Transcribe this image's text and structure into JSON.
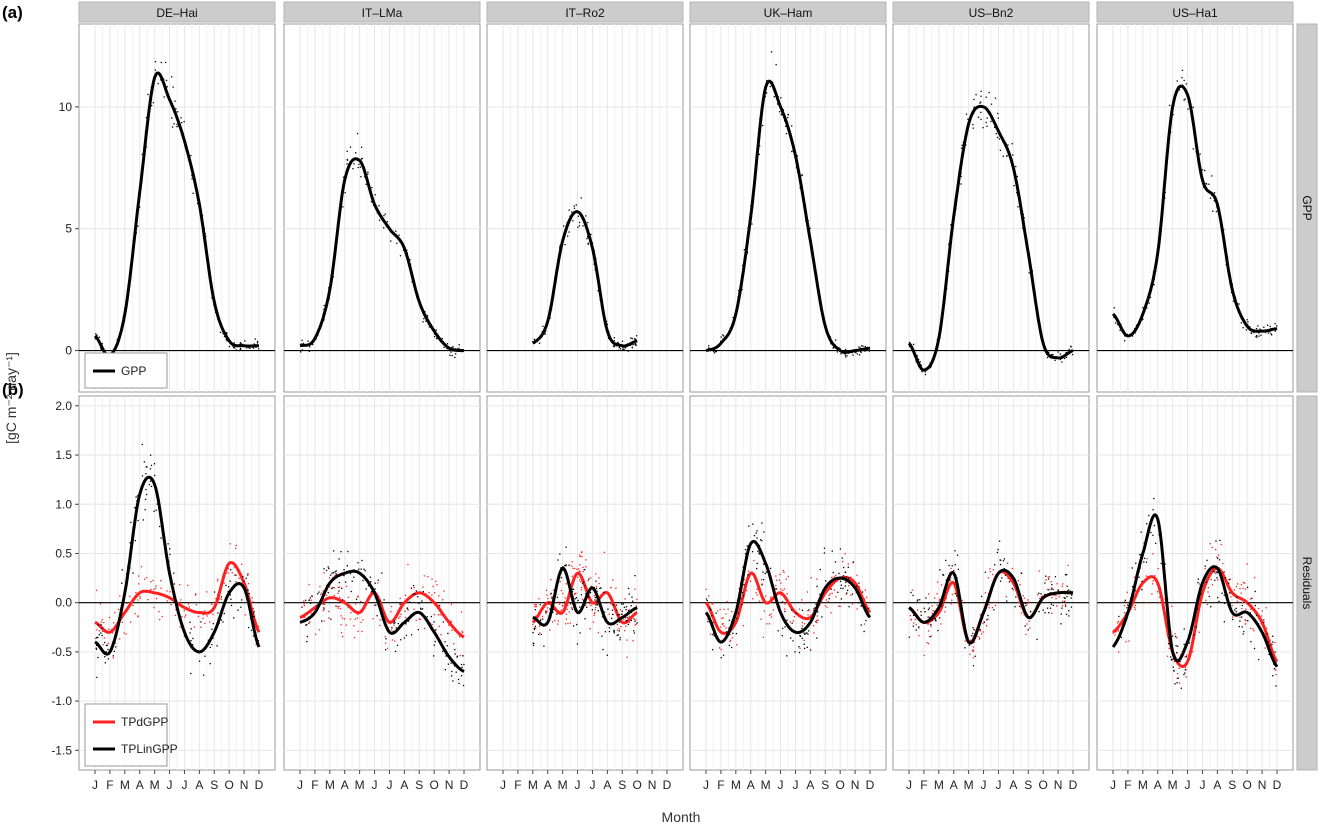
{
  "panel_labels": {
    "a": "(a)",
    "b": "(b)"
  },
  "y_axis_label": "[gC m⁻² day⁻¹]",
  "x_axis_label": "Month",
  "row_strips": [
    "GPP",
    "Residuals"
  ],
  "month_ticks": [
    "J",
    "F",
    "M",
    "A",
    "M",
    "J",
    "J",
    "A",
    "S",
    "O",
    "N",
    "D"
  ],
  "colors": {
    "gpp": "#000000",
    "tpd": "#ff2020",
    "tplin": "#000000",
    "strip": "#cccccc",
    "grid": "#e6e6e6",
    "zero": "#000000"
  },
  "chart_data": [
    {
      "type": "line",
      "row": "GPP",
      "x": [
        1,
        2,
        3,
        4,
        5,
        6,
        7,
        8,
        9,
        10,
        11,
        12
      ],
      "ylim": [
        -1.7,
        13.4
      ],
      "yticks": [
        0,
        5,
        10
      ],
      "legend": {
        "placement": "bottom-left",
        "entries": [
          "GPP"
        ]
      },
      "series": [
        {
          "name": "GPP",
          "site": "DE–Hai",
          "values": [
            0.6,
            -0.2,
            1.5,
            6.5,
            11.2,
            10.3,
            8.6,
            6.0,
            2.0,
            0.4,
            0.2,
            0.2
          ]
        },
        {
          "name": "GPP",
          "site": "IT–LMa",
          "values": [
            0.2,
            0.5,
            2.5,
            7.0,
            7.8,
            6.0,
            5.0,
            4.2,
            2.0,
            0.8,
            0.1,
            0.0
          ]
        },
        {
          "name": "GPP",
          "site": "IT–Ro2",
          "values": [
            null,
            null,
            0.3,
            1.2,
            4.5,
            5.7,
            4.2,
            0.8,
            0.2,
            0.4,
            null,
            null
          ]
        },
        {
          "name": "GPP",
          "site": "UK–Ham",
          "values": [
            0.0,
            0.3,
            1.5,
            5.5,
            10.8,
            10.0,
            8.0,
            4.5,
            1.0,
            0.0,
            0.0,
            0.1
          ]
        },
        {
          "name": "GPP",
          "site": "US–Bn2",
          "values": [
            0.3,
            -0.8,
            0.5,
            5.5,
            9.3,
            10.0,
            9.0,
            7.5,
            4.0,
            0.3,
            -0.3,
            0.0
          ]
        },
        {
          "name": "GPP",
          "site": "US–Ha1",
          "values": [
            1.5,
            0.6,
            1.5,
            4.0,
            10.0,
            10.5,
            7.0,
            6.0,
            2.5,
            1.0,
            0.8,
            0.9
          ]
        }
      ]
    },
    {
      "type": "line",
      "row": "Residuals",
      "x": [
        1,
        2,
        3,
        4,
        5,
        6,
        7,
        8,
        9,
        10,
        11,
        12
      ],
      "ylim": [
        -1.7,
        2.1
      ],
      "yticks": [
        -1.5,
        -1.0,
        -0.5,
        0.0,
        0.5,
        1.0,
        1.5,
        2.0
      ],
      "legend": {
        "placement": "bottom-left",
        "entries": [
          "TPdGPP",
          "TPLinGPP"
        ]
      },
      "series": [
        {
          "name": "TPdGPP",
          "site": "DE–Hai",
          "values": [
            -0.2,
            -0.3,
            -0.1,
            0.1,
            0.1,
            0.05,
            -0.05,
            -0.1,
            -0.05,
            0.4,
            0.2,
            -0.3
          ]
        },
        {
          "name": "TPLinGPP",
          "site": "DE–Hai",
          "values": [
            -0.4,
            -0.5,
            0.1,
            1.1,
            1.2,
            0.3,
            -0.3,
            -0.5,
            -0.3,
            0.1,
            0.15,
            -0.45
          ]
        },
        {
          "name": "TPdGPP",
          "site": "IT–LMa",
          "values": [
            -0.15,
            -0.05,
            0.05,
            0.0,
            -0.1,
            0.1,
            -0.2,
            0.0,
            0.1,
            0.0,
            -0.2,
            -0.35
          ]
        },
        {
          "name": "TPLinGPP",
          "site": "IT–LMa",
          "values": [
            -0.2,
            -0.1,
            0.2,
            0.3,
            0.3,
            0.1,
            -0.3,
            -0.2,
            -0.1,
            -0.3,
            -0.55,
            -0.7
          ]
        },
        {
          "name": "TPdGPP",
          "site": "IT–Ro2",
          "values": [
            null,
            null,
            -0.2,
            0.0,
            -0.1,
            0.3,
            0.0,
            0.1,
            -0.2,
            -0.1,
            null,
            null
          ]
        },
        {
          "name": "TPLinGPP",
          "site": "IT–Ro2",
          "values": [
            null,
            null,
            -0.15,
            -0.2,
            0.35,
            -0.1,
            0.15,
            -0.2,
            -0.15,
            -0.05,
            null,
            null
          ]
        },
        {
          "name": "TPdGPP",
          "site": "UK–Ham",
          "values": [
            0.0,
            -0.3,
            -0.2,
            0.3,
            0.0,
            0.1,
            -0.1,
            -0.15,
            0.1,
            0.25,
            0.2,
            -0.1
          ]
        },
        {
          "name": "TPLinGPP",
          "site": "UK–Ham",
          "values": [
            -0.1,
            -0.4,
            -0.1,
            0.6,
            0.4,
            -0.1,
            -0.3,
            -0.2,
            0.15,
            0.25,
            0.15,
            -0.15
          ]
        },
        {
          "name": "TPdGPP",
          "site": "US–Bn2",
          "values": [
            -0.05,
            -0.2,
            -0.1,
            0.2,
            -0.4,
            -0.1,
            0.3,
            0.2,
            -0.15,
            0.05,
            0.1,
            0.1
          ]
        },
        {
          "name": "TPLinGPP",
          "site": "US–Bn2",
          "values": [
            -0.05,
            -0.2,
            -0.05,
            0.3,
            -0.4,
            -0.1,
            0.3,
            0.25,
            -0.15,
            0.05,
            0.1,
            0.1
          ]
        },
        {
          "name": "TPdGPP",
          "site": "US–Ha1",
          "values": [
            -0.3,
            -0.1,
            0.2,
            0.2,
            -0.5,
            -0.6,
            0.1,
            0.35,
            0.1,
            0.0,
            -0.2,
            -0.6
          ]
        },
        {
          "name": "TPLinGPP",
          "site": "US–Ha1",
          "values": [
            -0.45,
            -0.1,
            0.5,
            0.85,
            -0.5,
            -0.4,
            0.2,
            0.35,
            -0.1,
            -0.1,
            -0.3,
            -0.65
          ]
        }
      ]
    }
  ],
  "sites": [
    "DE–Hai",
    "IT–LMa",
    "IT–Ro2",
    "UK–Ham",
    "US–Bn2",
    "US–Ha1"
  ]
}
